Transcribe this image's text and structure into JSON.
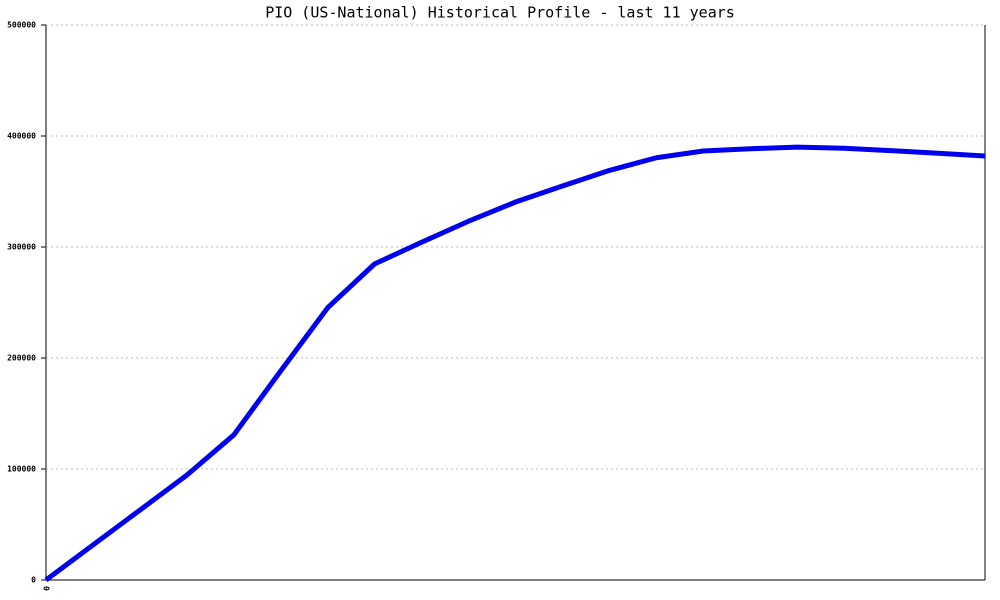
{
  "chart_data": {
    "type": "line",
    "title": "PIO (US-National) Historical Profile - last 11 years",
    "categories": [
      "0",
      null,
      null,
      null,
      null,
      null,
      null,
      null,
      null,
      null,
      null,
      null,
      null,
      null,
      null,
      null,
      null,
      null,
      null,
      null,
      null
    ],
    "series": [
      {
        "color": "#0000ee",
        "values": [
          0,
          31500,
          63000,
          94500,
          130700,
          188400,
          245300,
          284800,
          304300,
          323200,
          340500,
          355000,
          369000,
          380400,
          386500,
          388500,
          390000,
          389000,
          386800,
          384500,
          382000
        ]
      }
    ],
    "ylim": [
      0,
      500000
    ],
    "yticks": [
      0,
      100000,
      200000,
      300000,
      400000,
      500000
    ],
    "grid": true
  }
}
